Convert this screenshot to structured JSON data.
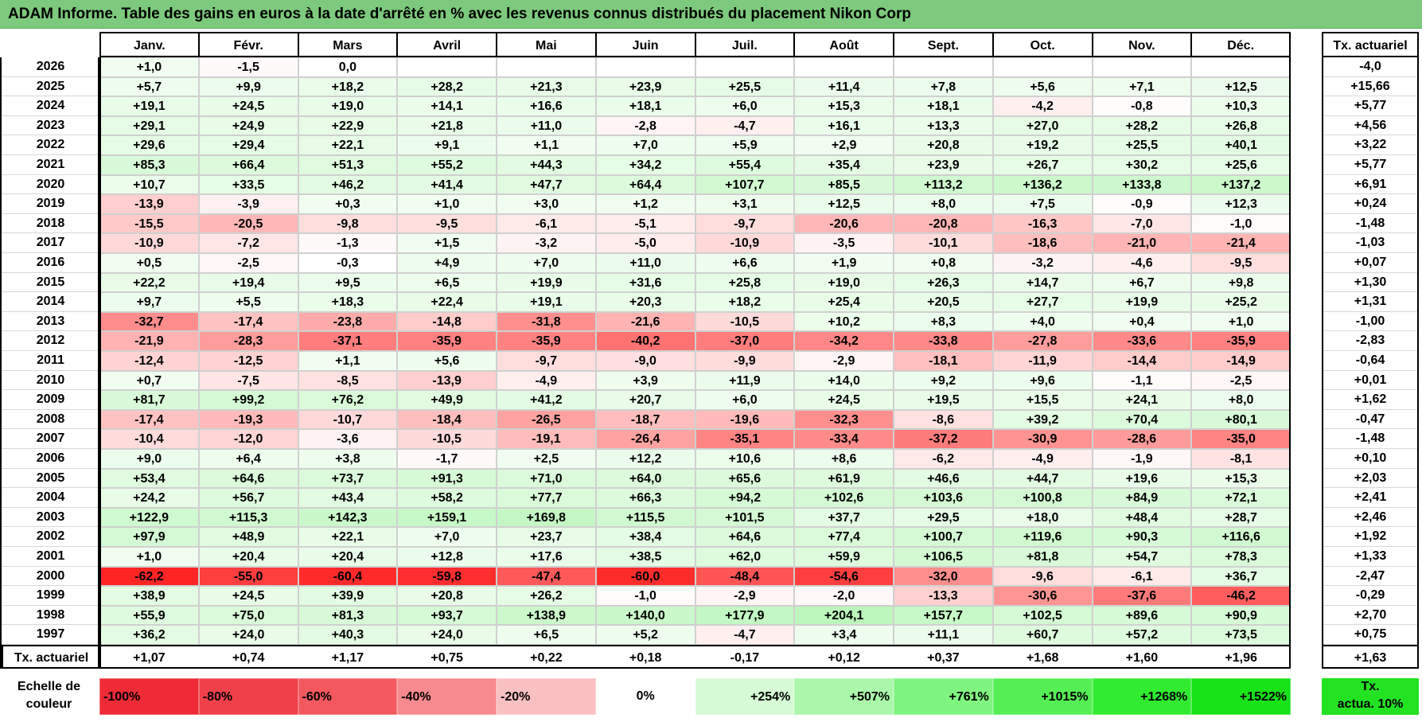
{
  "title": "ADAM Informe. Table des gains en euros à la date d'arrêté en % avec les revenus connus distribués du placement Nikon Corp",
  "chart_data": {
    "type": "table",
    "months": [
      "Janv.",
      "Févr.",
      "Mars",
      "Avril",
      "Mai",
      "Juin",
      "Juil.",
      "Août",
      "Sept.",
      "Oct.",
      "Nov.",
      "Déc."
    ],
    "annual_header": "Tx. actuariel",
    "rows": [
      {
        "year": "2026",
        "values": [
          "+1,0",
          "-1,5",
          "0,0",
          "",
          "",
          "",
          "",
          "",
          "",
          "",
          "",
          ""
        ],
        "rate": "-4,0"
      },
      {
        "year": "2025",
        "values": [
          "+5,7",
          "+9,9",
          "+18,2",
          "+28,2",
          "+21,3",
          "+23,9",
          "+25,5",
          "+11,4",
          "+7,8",
          "+5,6",
          "+7,1",
          "+12,5"
        ],
        "rate": "+15,66"
      },
      {
        "year": "2024",
        "values": [
          "+19,1",
          "+24,5",
          "+19,0",
          "+14,1",
          "+16,6",
          "+18,1",
          "+6,0",
          "+15,3",
          "+18,1",
          "-4,2",
          "-0,8",
          "+10,3"
        ],
        "rate": "+5,77"
      },
      {
        "year": "2023",
        "values": [
          "+29,1",
          "+24,9",
          "+22,9",
          "+21,8",
          "+11,0",
          "-2,8",
          "-4,7",
          "+16,1",
          "+13,3",
          "+27,0",
          "+28,2",
          "+26,8"
        ],
        "rate": "+4,56"
      },
      {
        "year": "2022",
        "values": [
          "+29,6",
          "+29,4",
          "+22,1",
          "+9,1",
          "+1,1",
          "+7,0",
          "+5,9",
          "+2,9",
          "+20,8",
          "+19,2",
          "+25,5",
          "+40,1"
        ],
        "rate": "+3,22"
      },
      {
        "year": "2021",
        "values": [
          "+85,3",
          "+66,4",
          "+51,3",
          "+55,2",
          "+44,3",
          "+34,2",
          "+55,4",
          "+35,4",
          "+23,9",
          "+26,7",
          "+30,2",
          "+25,6"
        ],
        "rate": "+5,77"
      },
      {
        "year": "2020",
        "values": [
          "+10,7",
          "+33,5",
          "+46,2",
          "+41,4",
          "+47,7",
          "+64,4",
          "+107,7",
          "+85,5",
          "+113,2",
          "+136,2",
          "+133,8",
          "+137,2"
        ],
        "rate": "+6,91"
      },
      {
        "year": "2019",
        "values": [
          "-13,9",
          "-3,9",
          "+0,3",
          "+1,0",
          "+3,0",
          "+1,2",
          "+3,1",
          "+12,5",
          "+8,0",
          "+7,5",
          "-0,9",
          "+12,3"
        ],
        "rate": "+0,24"
      },
      {
        "year": "2018",
        "values": [
          "-15,5",
          "-20,5",
          "-9,8",
          "-9,5",
          "-6,1",
          "-5,1",
          "-9,7",
          "-20,6",
          "-20,8",
          "-16,3",
          "-7,0",
          "-1,0"
        ],
        "rate": "-1,48"
      },
      {
        "year": "2017",
        "values": [
          "-10,9",
          "-7,2",
          "-1,3",
          "+1,5",
          "-3,2",
          "-5,0",
          "-10,9",
          "-3,5",
          "-10,1",
          "-18,6",
          "-21,0",
          "-21,4"
        ],
        "rate": "-1,03"
      },
      {
        "year": "2016",
        "values": [
          "+0,5",
          "-2,5",
          "-0,3",
          "+4,9",
          "+7,0",
          "+11,0",
          "+6,6",
          "+1,9",
          "+0,8",
          "-3,2",
          "-4,6",
          "-9,5"
        ],
        "rate": "+0,07"
      },
      {
        "year": "2015",
        "values": [
          "+22,2",
          "+19,4",
          "+9,5",
          "+6,5",
          "+19,9",
          "+31,6",
          "+25,8",
          "+19,0",
          "+26,3",
          "+14,7",
          "+6,7",
          "+9,8"
        ],
        "rate": "+1,30"
      },
      {
        "year": "2014",
        "values": [
          "+9,7",
          "+5,5",
          "+18,3",
          "+22,4",
          "+19,1",
          "+20,3",
          "+18,2",
          "+25,4",
          "+20,5",
          "+27,7",
          "+19,9",
          "+25,2"
        ],
        "rate": "+1,31"
      },
      {
        "year": "2013",
        "values": [
          "-32,7",
          "-17,4",
          "-23,8",
          "-14,8",
          "-31,8",
          "-21,6",
          "-10,5",
          "+10,2",
          "+8,3",
          "+4,0",
          "+0,4",
          "+1,0"
        ],
        "rate": "-1,00"
      },
      {
        "year": "2012",
        "values": [
          "-21,9",
          "-28,3",
          "-37,1",
          "-35,9",
          "-35,9",
          "-40,2",
          "-37,0",
          "-34,2",
          "-33,8",
          "-27,8",
          "-33,6",
          "-35,9"
        ],
        "rate": "-2,83"
      },
      {
        "year": "2011",
        "values": [
          "-12,4",
          "-12,5",
          "+1,1",
          "+5,6",
          "-9,7",
          "-9,0",
          "-9,9",
          "-2,9",
          "-18,1",
          "-11,9",
          "-14,4",
          "-14,9"
        ],
        "rate": "-0,64"
      },
      {
        "year": "2010",
        "values": [
          "+0,7",
          "-7,5",
          "-8,5",
          "-13,9",
          "-4,9",
          "+3,9",
          "+11,9",
          "+14,0",
          "+9,2",
          "+9,6",
          "-1,1",
          "-2,5"
        ],
        "rate": "+0,01"
      },
      {
        "year": "2009",
        "values": [
          "+81,7",
          "+99,2",
          "+76,2",
          "+49,9",
          "+41,2",
          "+20,7",
          "+6,0",
          "+24,5",
          "+19,5",
          "+15,5",
          "+24,1",
          "+8,0"
        ],
        "rate": "+1,62"
      },
      {
        "year": "2008",
        "values": [
          "-17,4",
          "-19,3",
          "-10,7",
          "-18,4",
          "-26,5",
          "-18,7",
          "-19,6",
          "-32,3",
          "-8,6",
          "+39,2",
          "+70,4",
          "+80,1"
        ],
        "rate": "-0,47"
      },
      {
        "year": "2007",
        "values": [
          "-10,4",
          "-12,0",
          "-3,6",
          "-10,5",
          "-19,1",
          "-26,4",
          "-35,1",
          "-33,4",
          "-37,2",
          "-30,9",
          "-28,6",
          "-35,0"
        ],
        "rate": "-1,48"
      },
      {
        "year": "2006",
        "values": [
          "+9,0",
          "+6,4",
          "+3,8",
          "-1,7",
          "+2,5",
          "+12,2",
          "+10,6",
          "+8,6",
          "-6,2",
          "-4,9",
          "-1,9",
          "-8,1"
        ],
        "rate": "+0,10"
      },
      {
        "year": "2005",
        "values": [
          "+53,4",
          "+64,6",
          "+73,7",
          "+91,3",
          "+71,0",
          "+64,0",
          "+65,6",
          "+61,9",
          "+46,6",
          "+44,7",
          "+19,6",
          "+15,3"
        ],
        "rate": "+2,03"
      },
      {
        "year": "2004",
        "values": [
          "+24,2",
          "+56,7",
          "+43,4",
          "+58,2",
          "+77,7",
          "+66,3",
          "+94,2",
          "+102,6",
          "+103,6",
          "+100,8",
          "+84,9",
          "+72,1"
        ],
        "rate": "+2,41"
      },
      {
        "year": "2003",
        "values": [
          "+122,9",
          "+115,3",
          "+142,3",
          "+159,1",
          "+169,8",
          "+115,5",
          "+101,5",
          "+37,7",
          "+29,5",
          "+18,0",
          "+48,4",
          "+28,7"
        ],
        "rate": "+2,46"
      },
      {
        "year": "2002",
        "values": [
          "+97,9",
          "+48,9",
          "+22,1",
          "+7,0",
          "+23,7",
          "+38,4",
          "+64,6",
          "+77,4",
          "+100,7",
          "+119,6",
          "+90,3",
          "+116,6"
        ],
        "rate": "+1,92"
      },
      {
        "year": "2001",
        "values": [
          "+1,0",
          "+20,4",
          "+20,4",
          "+12,8",
          "+17,6",
          "+38,5",
          "+62,0",
          "+59,9",
          "+106,5",
          "+81,8",
          "+54,7",
          "+78,3"
        ],
        "rate": "+1,33"
      },
      {
        "year": "2000",
        "values": [
          "-62,2",
          "-55,0",
          "-60,4",
          "-59,8",
          "-47,4",
          "-60,0",
          "-48,4",
          "-54,6",
          "-32,0",
          "-9,6",
          "-6,1",
          "+36,7"
        ],
        "rate": "-2,47"
      },
      {
        "year": "1999",
        "values": [
          "+38,9",
          "+24,5",
          "+39,9",
          "+20,8",
          "+26,2",
          "-1,0",
          "-2,9",
          "-2,0",
          "-13,3",
          "-30,6",
          "-37,6",
          "-46,2"
        ],
        "rate": "-0,29"
      },
      {
        "year": "1998",
        "values": [
          "+55,9",
          "+75,0",
          "+81,3",
          "+93,7",
          "+138,9",
          "+140,0",
          "+177,9",
          "+204,1",
          "+157,7",
          "+102,5",
          "+89,6",
          "+90,9"
        ],
        "rate": "+2,70"
      },
      {
        "year": "1997",
        "values": [
          "+36,2",
          "+24,0",
          "+40,3",
          "+24,0",
          "+6,5",
          "+5,2",
          "-4,7",
          "+3,4",
          "+11,1",
          "+60,7",
          "+57,2",
          "+73,5"
        ],
        "rate": "+0,75"
      }
    ],
    "footer": {
      "label": "Tx. actuariel",
      "values": [
        "+1,07",
        "+0,74",
        "+1,17",
        "+0,75",
        "+0,22",
        "+0,18",
        "-0,17",
        "+0,12",
        "+0,37",
        "+1,68",
        "+1,60",
        "+1,96"
      ],
      "total": "+1,63"
    },
    "legend": {
      "label_line1": "Echelle de",
      "label_line2": "couleur",
      "steps": [
        {
          "text": "-100%",
          "color": "#ee2b36",
          "align": "left"
        },
        {
          "text": "-80%",
          "color": "#f0404a",
          "align": "left"
        },
        {
          "text": "-60%",
          "color": "#f3585f",
          "align": "left"
        },
        {
          "text": "-40%",
          "color": "#f68a8e",
          "align": "left"
        },
        {
          "text": "-20%",
          "color": "#f9c0c2",
          "align": "left"
        },
        {
          "text": "0%",
          "color": "#ffffff",
          "align": "center"
        },
        {
          "text": "+254%",
          "color": "#d6fbd6",
          "align": "right"
        },
        {
          "text": "+507%",
          "color": "#aaf7aa",
          "align": "right"
        },
        {
          "text": "+761%",
          "color": "#80f480",
          "align": "right"
        },
        {
          "text": "+1015%",
          "color": "#55ef55",
          "align": "right"
        },
        {
          "text": "+1268%",
          "color": "#30eb30",
          "align": "right"
        },
        {
          "text": "+1522%",
          "color": "#17e317",
          "align": "right"
        }
      ],
      "rate_line1": "Tx.",
      "rate_line2": "actua. 10%",
      "rate_color": "#22e222"
    },
    "colors": {
      "neg_full": "#ff1a1a",
      "pos_full": "#00dd00",
      "header_bg": "#7dc97d"
    }
  }
}
